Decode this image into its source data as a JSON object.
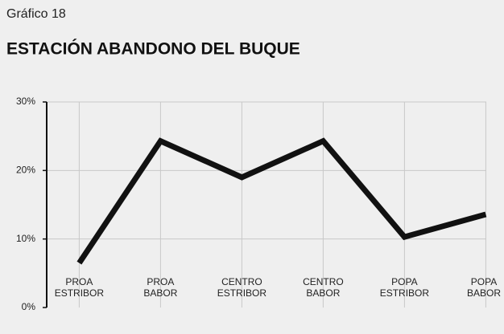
{
  "chart_data": {
    "type": "line",
    "label": "Gráfico 18",
    "title": "ESTACIÓN ABANDONO DEL BUQUE",
    "categories": [
      "PROA\nESTRIBOR",
      "PROA\nBABOR",
      "CENTRO\nESTRIBOR",
      "CENTRO\nBABOR",
      "POPA\nESTRIBOR",
      "POPA\nBABOR"
    ],
    "values": [
      6.5,
      24.3,
      19,
      24.3,
      10.3,
      13.6
    ],
    "color": "#111111",
    "ylim": [
      0,
      30
    ],
    "yticks": [
      {
        "value": 0,
        "label": "0%"
      },
      {
        "value": 10,
        "label": "10%"
      },
      {
        "value": 20,
        "label": "20%"
      },
      {
        "value": 30,
        "label": "30%"
      }
    ],
    "grid": true
  }
}
